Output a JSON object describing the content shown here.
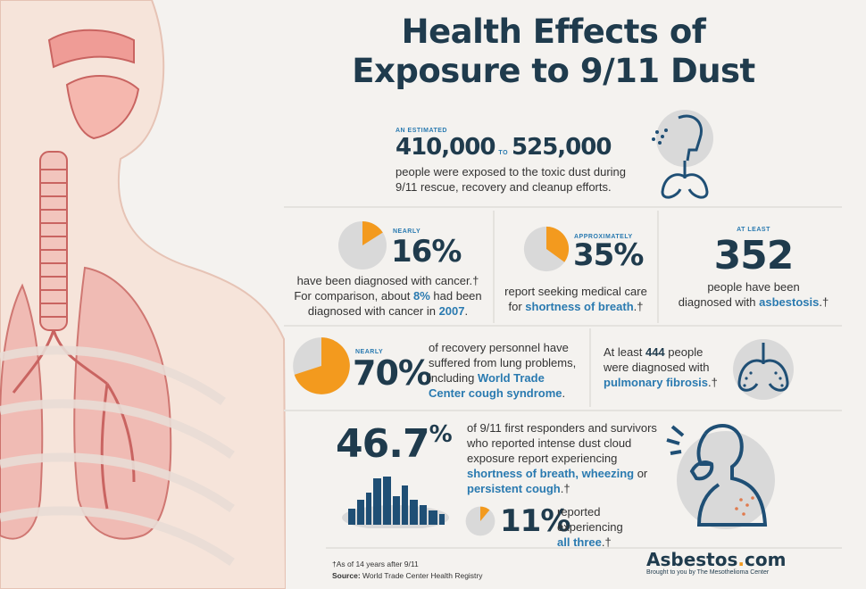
{
  "title": {
    "line1": "Health Effects of",
    "line2": "Exposure to 9/11 Dust"
  },
  "exposed": {
    "pre": "AN ESTIMATED",
    "low": "410,000",
    "to": "TO",
    "high": "525,000",
    "text": "people were exposed to the toxic dust during 9/11 rescue, recovery and cleanup efforts."
  },
  "cancer": {
    "pre": "NEARLY",
    "value": "16%",
    "fraction": 0.16,
    "line1": "have been diagnosed with cancer.†",
    "line2a": "For comparison, about ",
    "line2b": "8%",
    "line2c": " had been",
    "line3a": "diagnosed with cancer in ",
    "line3b": "2007",
    "line3c": "."
  },
  "breath": {
    "pre": "APPROXIMATELY",
    "value": "35%",
    "fraction": 0.35,
    "line1": "report seeking medical care",
    "line2a": "for ",
    "line2b": "shortness of breath",
    "line2c": ".†"
  },
  "asbestosis": {
    "pre": "AT LEAST",
    "value": "352",
    "line1": "people have been",
    "line2a": "diagnosed with ",
    "line2b": "asbestosis",
    "line2c": ".†"
  },
  "lung": {
    "pre": "NEARLY",
    "value": "70%",
    "fraction": 0.7,
    "line1": "of recovery personnel have",
    "line2": "suffered from lung problems,",
    "line3a": "including ",
    "line3b": "World Trade",
    "line4": "Center cough syndrome",
    "line4c": "."
  },
  "fibrosis": {
    "line1a": "At least ",
    "line1b": "444",
    "line1c": " people",
    "line2": "were diagnosed with",
    "line3a": "pulmonary fibrosis",
    "line3b": ".†"
  },
  "responders": {
    "value": "46.7",
    "pct": "%",
    "line1": "of 9/11 first responders and survivors",
    "line2": "who reported intense dust cloud",
    "line3": "exposure report experiencing",
    "line4a": "shortness of breath, wheezing",
    "line4b": " or",
    "line5a": "persistent cough",
    "line5b": ".†"
  },
  "all_three": {
    "value": "11%",
    "fraction": 0.11,
    "line1": "reported",
    "line2": "experiencing",
    "line3a": "all three",
    "line3b": ".†"
  },
  "footnote": {
    "note": "†As of 14 years after 9/11",
    "source_label": "Source:",
    "source": " World Trade Center Health Registry"
  },
  "brand": {
    "name": "Asbestos",
    "dot": ".",
    "com": "com",
    "tag": "Brought to you by The Mesothelioma Center"
  },
  "colors": {
    "navy": "#1f3b4d",
    "blue": "#2a7ab0",
    "orange": "#f39a1e",
    "gray": "#d9d9d9",
    "pink": "#e8a3a1"
  }
}
